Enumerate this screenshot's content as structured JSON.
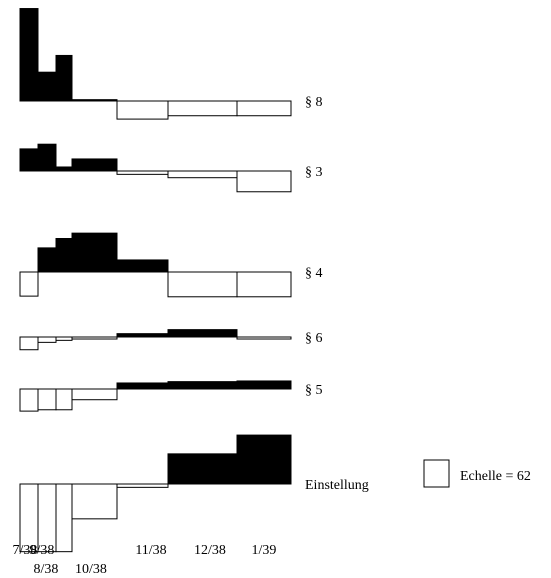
{
  "chart_data": {
    "type": "bar",
    "scale_unit": 62,
    "x_tick_labels": [
      "7/38",
      "8/38",
      "9/38",
      "10/38",
      "11/38",
      "12/38",
      "1/39"
    ],
    "periods": [
      "7/38",
      "8/38",
      "9/38",
      "10/38",
      "11/38",
      "12/38",
      "1/39"
    ],
    "color_positive": "#000000",
    "color_negative": "#ffffff",
    "series": [
      {
        "name": "§ 8",
        "values": [
          138,
          43,
          68,
          2,
          -27,
          -22,
          -22
        ]
      },
      {
        "name": "§ 3",
        "values": [
          33,
          40,
          6,
          18,
          -5,
          -10,
          -31
        ]
      },
      {
        "name": "§ 4",
        "values": [
          -36,
          36,
          50,
          58,
          18,
          -37,
          -37
        ]
      },
      {
        "name": "§ 6",
        "values": [
          -19,
          -8,
          -5,
          -3,
          5,
          11,
          -3
        ]
      },
      {
        "name": "§ 5",
        "values": [
          -33,
          -31,
          -31,
          -16,
          9,
          11,
          12
        ]
      },
      {
        "name": "Einstellung",
        "values": [
          -101,
          -101,
          -101,
          -52,
          -5,
          45,
          73
        ]
      }
    ]
  },
  "legend": {
    "label": "Echelle = 62",
    "icon": "square-outline-icon"
  }
}
